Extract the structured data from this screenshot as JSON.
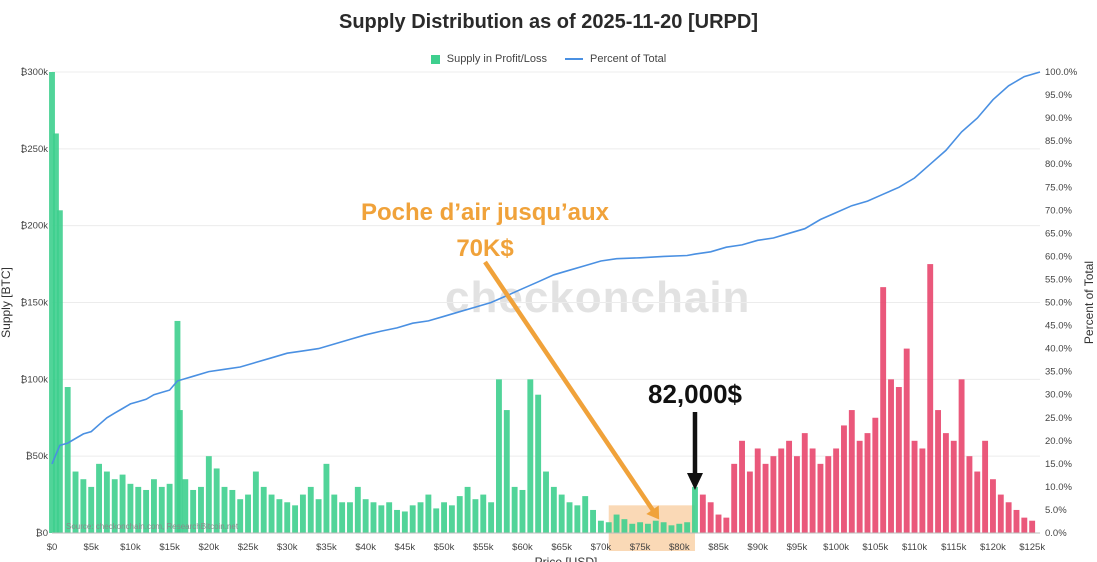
{
  "chart_data": {
    "type": "bar",
    "title": "Supply Distribution as of 2025-11-20 [URPD]",
    "legend": [
      "Supply in Profit/Loss",
      "Percent of Total"
    ],
    "xlabel": "Price [USD]",
    "ylabel": "Supply [BTC]",
    "y2label": "Percent of Total",
    "xlim": [
      0,
      126000
    ],
    "ylim": [
      0,
      300000
    ],
    "y2lim": [
      0,
      100
    ],
    "current_price": 82000,
    "x_ticks": [
      "$0",
      "$5k",
      "$10k",
      "$15k",
      "$20k",
      "$25k",
      "$30k",
      "$35k",
      "$40k",
      "$45k",
      "$50k",
      "$55k",
      "$60k",
      "$65k",
      "$70k",
      "$75k",
      "$80k",
      "$85k",
      "$90k",
      "$95k",
      "$100k",
      "$105k",
      "$110k",
      "$115k",
      "$120k",
      "$125k"
    ],
    "y_ticks": [
      "₿0",
      "₿50k",
      "₿100k",
      "₿150k",
      "₿200k",
      "₿250k",
      "₿300k"
    ],
    "y2_ticks": [
      "0.0%",
      "5.0%",
      "10.0%",
      "15.0%",
      "20.0%",
      "25.0%",
      "30.0%",
      "35.0%",
      "40.0%",
      "45.0%",
      "50.0%",
      "55.0%",
      "60.0%",
      "65.0%",
      "70.0%",
      "75.0%",
      "80.0%",
      "85.0%",
      "90.0%",
      "95.0%",
      "100.0%"
    ],
    "colors": {
      "profit": "#3ecf8e",
      "loss": "#e8466d",
      "cumulative": "#4a90e2",
      "annotation": "#f0a23a",
      "highlight": "#f5b97a"
    },
    "series": [
      {
        "name": "Supply in Profit/Loss",
        "price_usd": [
          0,
          500,
          1000,
          2000,
          3000,
          4000,
          5000,
          6000,
          7000,
          8000,
          9000,
          10000,
          11000,
          12000,
          13000,
          14000,
          15000,
          16000,
          16300,
          17000,
          18000,
          19000,
          20000,
          21000,
          22000,
          23000,
          24000,
          25000,
          26000,
          27000,
          28000,
          29000,
          30000,
          31000,
          32000,
          33000,
          34000,
          35000,
          36000,
          37000,
          38000,
          39000,
          40000,
          41000,
          42000,
          43000,
          44000,
          45000,
          46000,
          47000,
          48000,
          49000,
          50000,
          51000,
          52000,
          53000,
          54000,
          55000,
          56000,
          57000,
          58000,
          59000,
          60000,
          61000,
          62000,
          63000,
          64000,
          65000,
          66000,
          67000,
          68000,
          69000,
          70000,
          71000,
          72000,
          73000,
          74000,
          75000,
          76000,
          77000,
          78000,
          79000,
          80000,
          81000,
          82000,
          83000,
          84000,
          85000,
          86000,
          87000,
          88000,
          89000,
          90000,
          91000,
          92000,
          93000,
          94000,
          95000,
          96000,
          97000,
          98000,
          99000,
          100000,
          101000,
          102000,
          103000,
          104000,
          105000,
          106000,
          107000,
          108000,
          109000,
          110000,
          111000,
          112000,
          113000,
          114000,
          115000,
          116000,
          117000,
          118000,
          119000,
          120000,
          121000,
          122000,
          123000,
          124000,
          125000
        ],
        "supply_btc": [
          300000,
          260000,
          210000,
          95000,
          40000,
          35000,
          30000,
          45000,
          40000,
          35000,
          38000,
          32000,
          30000,
          28000,
          35000,
          30000,
          32000,
          138000,
          80000,
          35000,
          28000,
          30000,
          50000,
          42000,
          30000,
          28000,
          22000,
          25000,
          40000,
          30000,
          25000,
          22000,
          20000,
          18000,
          25000,
          30000,
          22000,
          45000,
          25000,
          20000,
          20000,
          30000,
          22000,
          20000,
          18000,
          20000,
          15000,
          14000,
          18000,
          20000,
          25000,
          16000,
          20000,
          18000,
          24000,
          30000,
          22000,
          25000,
          20000,
          100000,
          80000,
          30000,
          28000,
          100000,
          90000,
          40000,
          30000,
          25000,
          20000,
          18000,
          24000,
          15000,
          8000,
          7000,
          12000,
          9000,
          6000,
          7000,
          6000,
          8000,
          7000,
          5000,
          6000,
          7000,
          30000,
          25000,
          20000,
          12000,
          10000,
          45000,
          60000,
          40000,
          55000,
          45000,
          50000,
          55000,
          60000,
          50000,
          65000,
          55000,
          45000,
          50000,
          55000,
          70000,
          80000,
          60000,
          65000,
          75000,
          160000,
          100000,
          95000,
          120000,
          60000,
          55000,
          175000,
          80000,
          65000,
          60000,
          100000,
          50000,
          40000,
          60000,
          35000,
          25000,
          20000,
          15000,
          10000,
          8000
        ]
      },
      {
        "name": "Percent of Total",
        "price_usd": [
          0,
          500,
          1000,
          2000,
          3000,
          4000,
          5000,
          6000,
          7000,
          8000,
          9000,
          10000,
          11000,
          12000,
          13000,
          14000,
          15000,
          16000,
          17000,
          18000,
          20000,
          22000,
          24000,
          26000,
          28000,
          30000,
          32000,
          34000,
          36000,
          38000,
          40000,
          42000,
          44000,
          46000,
          48000,
          50000,
          52000,
          54000,
          56000,
          58000,
          60000,
          62000,
          64000,
          66000,
          68000,
          70000,
          72000,
          75000,
          78000,
          81000,
          82000,
          84000,
          86000,
          88000,
          90000,
          92000,
          94000,
          96000,
          98000,
          100000,
          102000,
          104000,
          106000,
          108000,
          110000,
          112000,
          114000,
          116000,
          118000,
          120000,
          122000,
          124000,
          126000
        ],
        "percent": [
          15,
          17,
          19,
          19.5,
          20.5,
          21.5,
          22,
          23.5,
          25,
          26,
          27,
          28,
          28.5,
          29,
          30,
          30.5,
          31,
          33,
          33.5,
          34,
          35,
          35.5,
          36,
          37,
          38,
          39,
          39.5,
          40,
          41,
          42,
          43,
          43.8,
          44.5,
          45.5,
          46,
          47,
          48,
          49,
          50,
          51.5,
          53,
          54.5,
          56,
          57,
          58,
          59,
          59.5,
          59.7,
          60,
          60.2,
          60.5,
          61,
          62,
          62.5,
          63.5,
          64,
          65,
          66,
          68,
          69.5,
          71,
          72,
          73.5,
          75,
          77,
          80,
          83,
          87,
          90,
          94,
          97,
          99,
          100
        ]
      }
    ],
    "annotations": [
      {
        "text_line1": "Poche d’air jusqu’aux",
        "text_line2": "70K$",
        "range_usd": [
          71000,
          82000
        ]
      },
      {
        "text": "82,000$",
        "price_usd": 82000
      }
    ],
    "source": "Source: checkonchain.com, ResearchBitcoin.net",
    "watermark": "checkonchain"
  }
}
